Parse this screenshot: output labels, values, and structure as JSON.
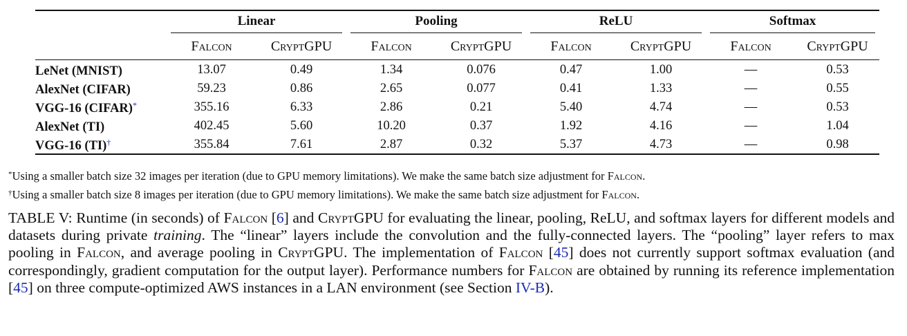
{
  "table": {
    "groups": [
      "Linear",
      "Pooling",
      "ReLU",
      "Softmax"
    ],
    "sub_columns": [
      "Falcon",
      "CryptGPU"
    ],
    "rows": [
      {
        "model": "LeNet (MNIST)",
        "mark": "",
        "values": [
          "13.07",
          "0.49",
          "1.34",
          "0.076",
          "0.47",
          "1.00",
          "—",
          "0.53"
        ]
      },
      {
        "model": "AlexNet (CIFAR)",
        "mark": "",
        "values": [
          "59.23",
          "0.86",
          "2.65",
          "0.077",
          "0.41",
          "1.33",
          "—",
          "0.55"
        ]
      },
      {
        "model": "VGG-16 (CIFAR)",
        "mark": "*",
        "values": [
          "355.16",
          "6.33",
          "2.86",
          "0.21",
          "5.40",
          "4.74",
          "—",
          "0.53"
        ]
      },
      {
        "model": "AlexNet (TI)",
        "mark": "",
        "values": [
          "402.45",
          "5.60",
          "10.20",
          "0.37",
          "1.92",
          "4.16",
          "—",
          "1.04"
        ]
      },
      {
        "model": "VGG-16 (TI)",
        "mark": "†",
        "values": [
          "355.84",
          "7.61",
          "2.87",
          "0.32",
          "5.37",
          "4.73",
          "—",
          "0.98"
        ]
      }
    ]
  },
  "notes": [
    {
      "mark": "*",
      "text": "Using a smaller batch size 32 images per iteration (due to GPU memory limitations). We make the same batch size adjustment for ",
      "sc": "Falcon",
      "end": "."
    },
    {
      "mark": "†",
      "text": "Using a smaller batch size 8 images per iteration (due to GPU memory limitations). We make the same batch size adjustment for ",
      "sc": "Falcon",
      "end": "."
    }
  ],
  "caption": {
    "p01": "TABLE V: Runtime (in seconds) of ",
    "p02": "Falcon",
    "p03": " [",
    "p04": "6",
    "p05": "] and ",
    "p06": "CryptGPU",
    "p07": " for evaluating the linear, pooling, ReLU, and softmax layers for different models and datasets during private ",
    "p08": "training",
    "p09": ". The “linear” layers include the convolution and the fully-connected layers. The “pooling” layer refers to max pooling in ",
    "p10": "Falcon",
    "p11": ", and average pooling in ",
    "p12": "CryptGPU",
    "p13": ". The implementation of ",
    "p14": "Falcon",
    "p15": " [",
    "p16": "45",
    "p17": "] does not currently support softmax evaluation (and correspondingly, gradient computation for the output layer). Performance numbers for ",
    "p18": "Falcon",
    "p19": " are obtained by running its reference implementation [",
    "p20": "45",
    "p21": "] on three compute-optimized AWS instances in a LAN environment (see Section ",
    "p22": "IV-B",
    "p23": ")."
  }
}
